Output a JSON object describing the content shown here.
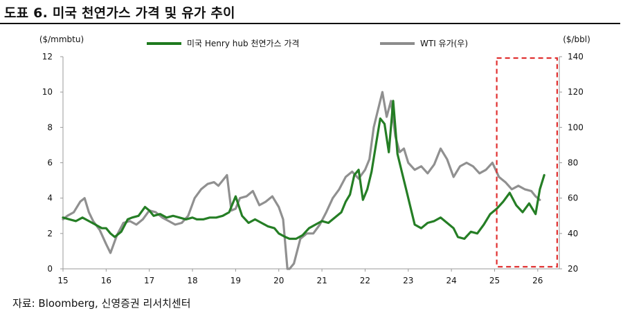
{
  "title": "도표 6. 미국 천연가스 가격 및 유가 추이",
  "source": "자료: Bloomberg, 신영증권 리서치센터",
  "chart_data": {
    "type": "line",
    "title": "도표 6. 미국 천연가스 가격 및 유가 추이",
    "y_left_label": "($/mmbtu)",
    "y_right_label": "($/bbl)",
    "y_left_lim": [
      0,
      12
    ],
    "y_right_lim": [
      20,
      140
    ],
    "y_left_ticks": [
      "0",
      "2",
      "4",
      "6",
      "8",
      "10",
      "12"
    ],
    "y_right_ticks": [
      "20",
      "40",
      "60",
      "80",
      "100",
      "120",
      "140"
    ],
    "x_lim": [
      15,
      26.5
    ],
    "x_ticks": [
      "15",
      "16",
      "17",
      "18",
      "19",
      "20",
      "21",
      "22",
      "23",
      "24",
      "25",
      "26"
    ],
    "grid": false,
    "legend_position": "top",
    "highlight": {
      "type": "dashed-box",
      "x_from": 25.05,
      "x_to": 26.45,
      "color": "#e03030"
    },
    "series": [
      {
        "name": "미국 Henry hub 천연가스 가격",
        "axis": "left",
        "color": "#1e7a1e",
        "x": [
          15.0,
          15.15,
          15.3,
          15.45,
          15.6,
          15.75,
          15.9,
          16.0,
          16.1,
          16.2,
          16.35,
          16.5,
          16.6,
          16.75,
          16.9,
          17.0,
          17.1,
          17.25,
          17.4,
          17.55,
          17.7,
          17.85,
          18.0,
          18.1,
          18.25,
          18.4,
          18.55,
          18.7,
          18.85,
          19.0,
          19.15,
          19.3,
          19.45,
          19.6,
          19.75,
          19.9,
          20.0,
          20.15,
          20.25,
          20.4,
          20.55,
          20.7,
          20.85,
          21.0,
          21.15,
          21.3,
          21.45,
          21.55,
          21.65,
          21.75,
          21.85,
          21.95,
          22.05,
          22.15,
          22.25,
          22.35,
          22.45,
          22.55,
          22.65,
          22.75,
          22.85,
          22.95,
          23.05,
          23.15,
          23.3,
          23.45,
          23.6,
          23.75,
          23.9,
          24.05,
          24.15,
          24.3,
          24.45,
          24.6,
          24.75,
          24.9,
          25.05,
          25.2,
          25.35,
          25.5,
          25.65,
          25.8,
          25.95,
          26.05,
          26.15
        ],
        "values": [
          2.9,
          2.8,
          2.7,
          2.9,
          2.7,
          2.5,
          2.3,
          2.3,
          2.0,
          1.8,
          2.1,
          2.8,
          2.9,
          3.0,
          3.5,
          3.3,
          3.0,
          3.1,
          2.9,
          3.0,
          2.9,
          2.8,
          2.9,
          2.8,
          2.8,
          2.9,
          2.9,
          3.0,
          3.2,
          4.1,
          3.0,
          2.6,
          2.8,
          2.6,
          2.4,
          2.3,
          2.0,
          1.8,
          1.7,
          1.7,
          1.9,
          2.3,
          2.5,
          2.7,
          2.6,
          2.9,
          3.2,
          3.8,
          4.2,
          5.3,
          5.6,
          3.9,
          4.5,
          5.5,
          7.0,
          8.5,
          8.2,
          6.6,
          9.5,
          6.5,
          5.5,
          4.5,
          3.5,
          2.5,
          2.3,
          2.6,
          2.7,
          2.9,
          2.6,
          2.3,
          1.8,
          1.7,
          2.1,
          2.0,
          2.5,
          3.1,
          3.4,
          3.8,
          4.3,
          3.6,
          3.2,
          3.7,
          3.1,
          4.5,
          5.3
        ]
      },
      {
        "name": "WTI 유가(우)",
        "axis": "right",
        "color": "#8c8c8c",
        "x": [
          15.0,
          15.1,
          15.25,
          15.4,
          15.5,
          15.6,
          15.7,
          15.85,
          16.0,
          16.1,
          16.25,
          16.4,
          16.55,
          16.7,
          16.85,
          17.0,
          17.15,
          17.3,
          17.45,
          17.6,
          17.75,
          17.9,
          18.05,
          18.2,
          18.35,
          18.5,
          18.6,
          18.7,
          18.8,
          18.9,
          19.0,
          19.1,
          19.25,
          19.4,
          19.55,
          19.7,
          19.85,
          20.0,
          20.1,
          20.2,
          20.25,
          20.35,
          20.5,
          20.65,
          20.8,
          20.95,
          21.1,
          21.25,
          21.4,
          21.55,
          21.7,
          21.85,
          22.0,
          22.1,
          22.2,
          22.3,
          22.4,
          22.5,
          22.6,
          22.7,
          22.8,
          22.9,
          23.0,
          23.15,
          23.3,
          23.45,
          23.6,
          23.75,
          23.9,
          24.05,
          24.2,
          24.35,
          24.5,
          24.65,
          24.8,
          24.95,
          25.1,
          25.25,
          25.4,
          25.55,
          25.7,
          25.85,
          25.95,
          26.05
        ],
        "values": [
          48,
          50,
          52,
          58,
          60,
          52,
          47,
          42,
          34,
          29,
          39,
          46,
          47,
          45,
          48,
          53,
          52,
          49,
          47,
          45,
          46,
          50,
          60,
          65,
          68,
          69,
          67,
          70,
          73,
          53,
          54,
          60,
          61,
          64,
          56,
          58,
          61,
          55,
          48,
          20,
          20,
          23,
          37,
          40,
          40,
          45,
          52,
          60,
          65,
          72,
          75,
          71,
          76,
          82,
          100,
          110,
          120,
          106,
          115,
          95,
          86,
          88,
          80,
          76,
          78,
          74,
          79,
          88,
          82,
          72,
          78,
          80,
          78,
          74,
          76,
          80,
          72,
          69,
          65,
          67,
          65,
          64,
          61,
          59
        ]
      }
    ]
  }
}
